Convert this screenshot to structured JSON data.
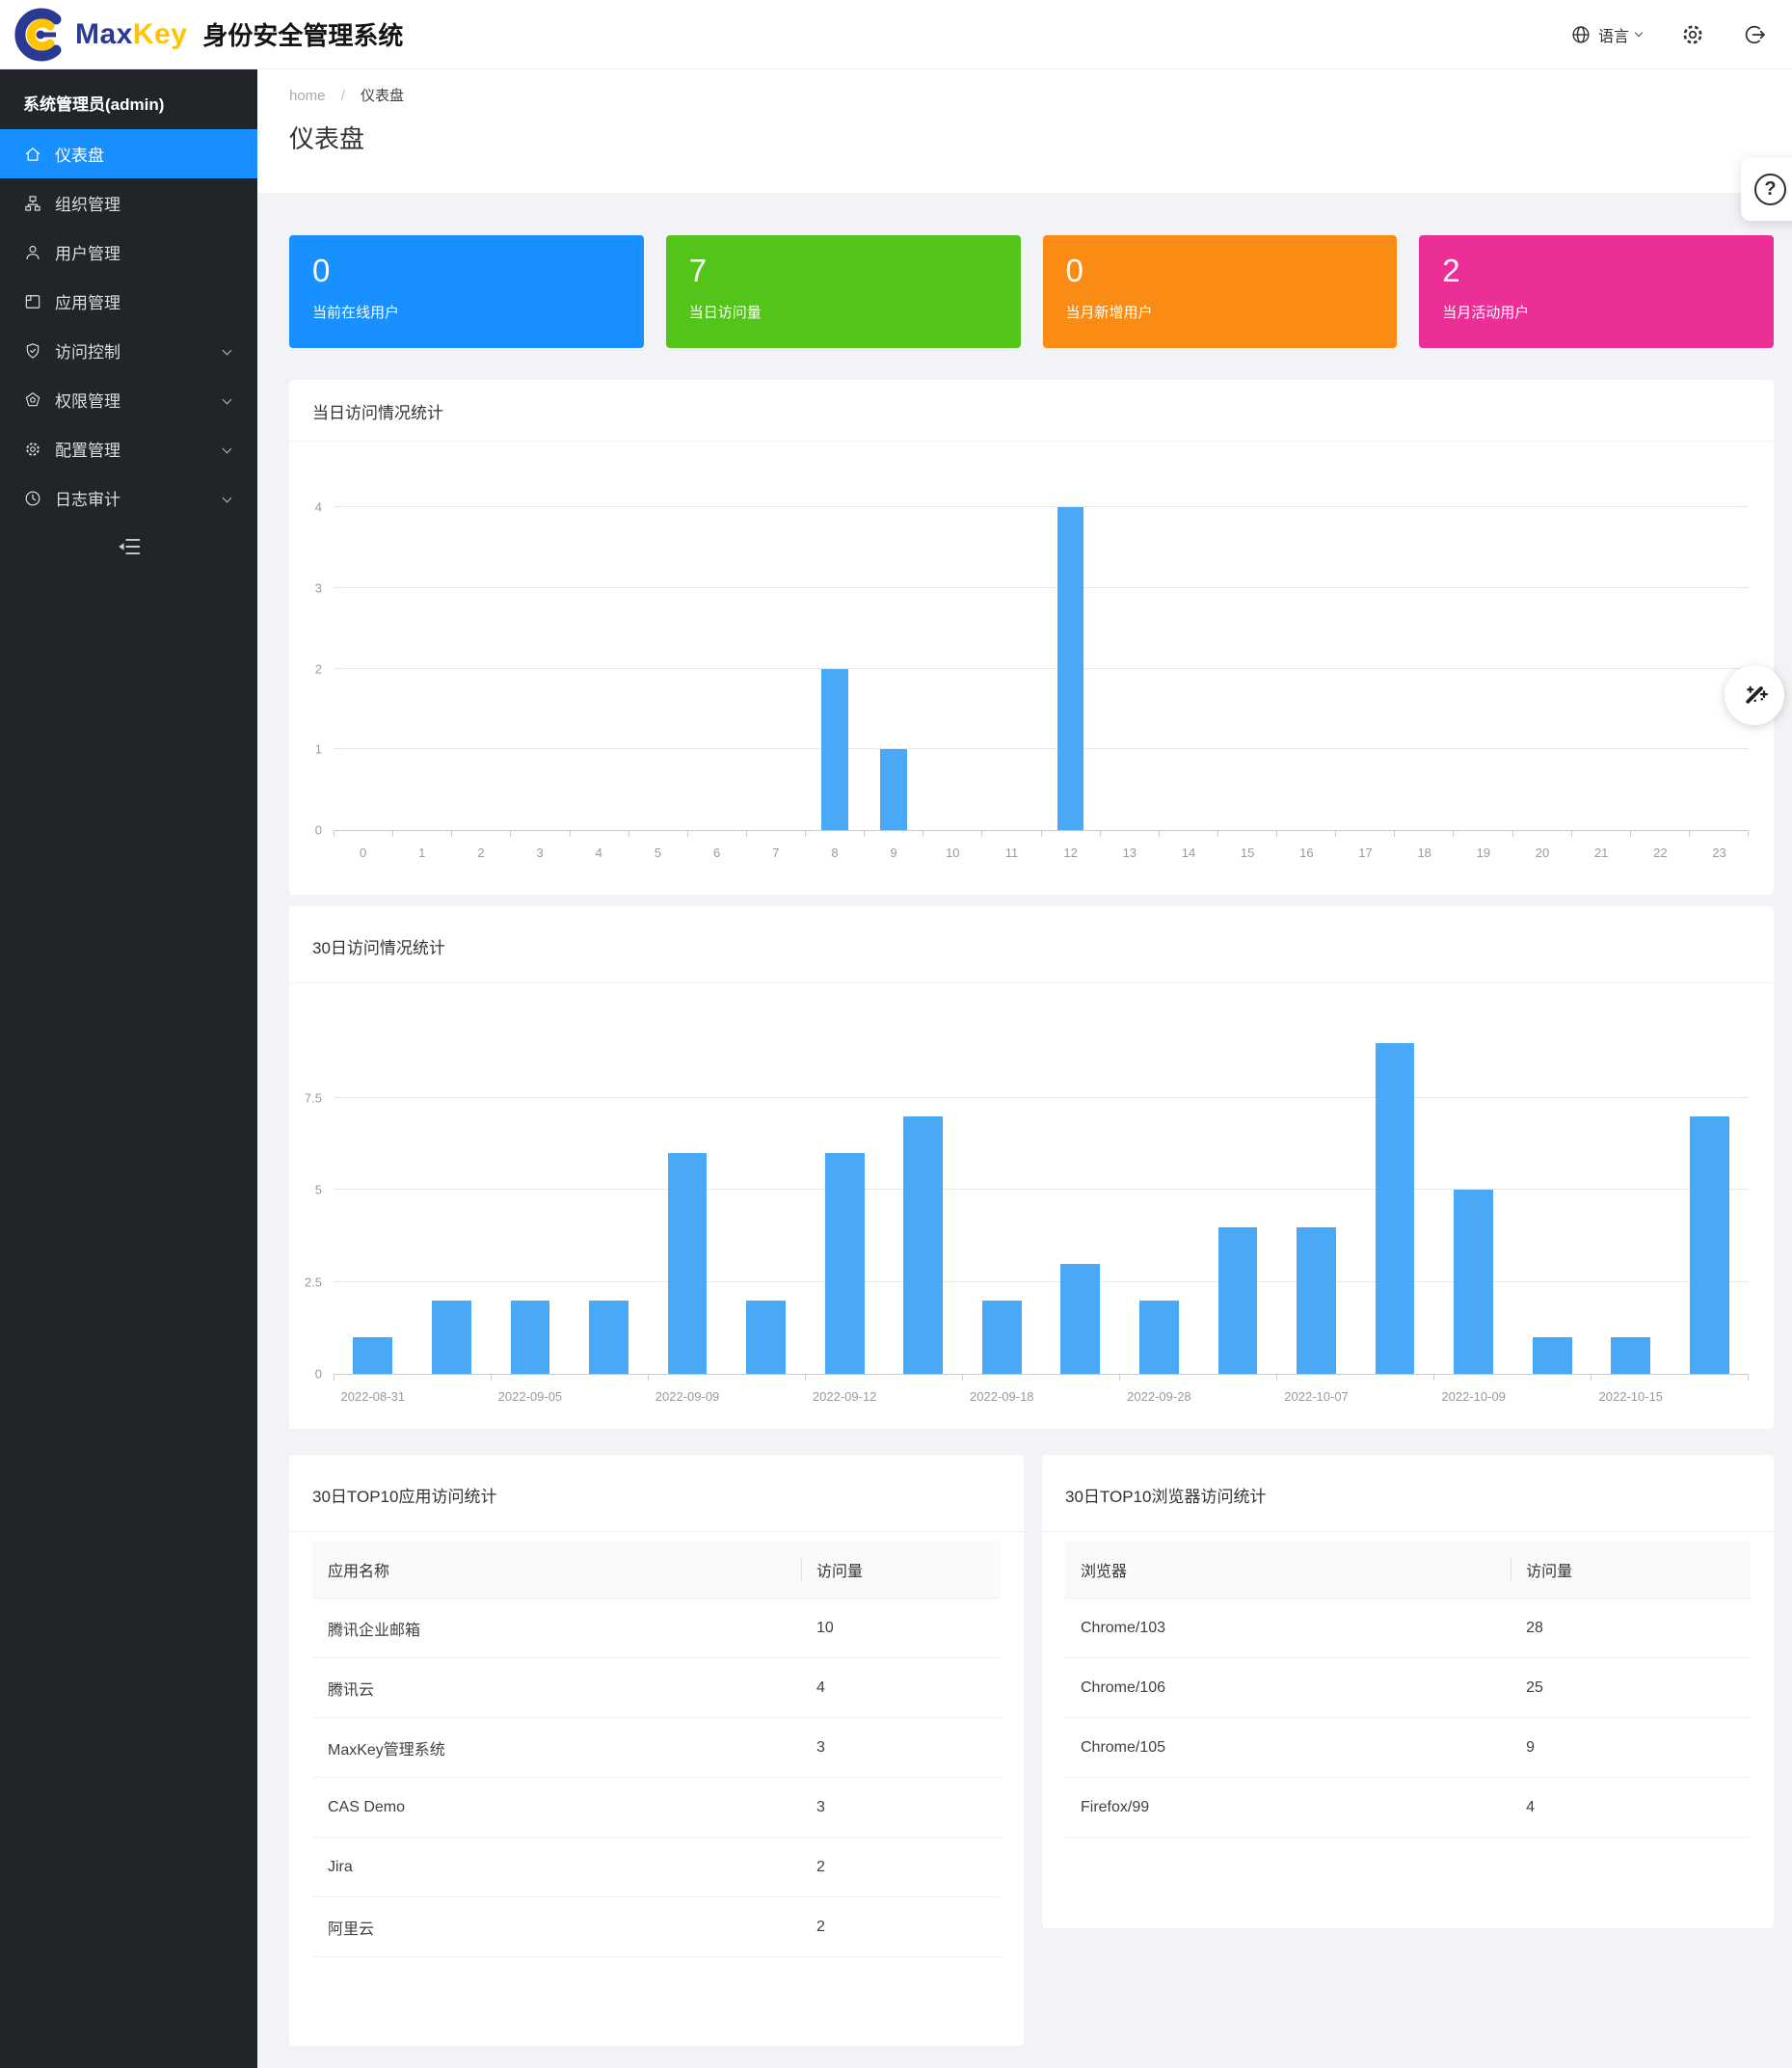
{
  "header": {
    "brand_max": "Max",
    "brand_key": "Key",
    "brand_title": "身份安全管理系统",
    "language_label": "语言"
  },
  "breadcrumb": {
    "home": "home",
    "separator": "/",
    "current": "仪表盘"
  },
  "page": {
    "title": "仪表盘"
  },
  "sidebar": {
    "user": "系统管理员(admin)",
    "items": [
      {
        "label": "仪表盘",
        "icon": "home-icon",
        "active": true,
        "expandable": false
      },
      {
        "label": "组织管理",
        "icon": "org-icon",
        "active": false,
        "expandable": false
      },
      {
        "label": "用户管理",
        "icon": "user-icon",
        "active": false,
        "expandable": false
      },
      {
        "label": "应用管理",
        "icon": "apps-icon",
        "active": false,
        "expandable": false
      },
      {
        "label": "访问控制",
        "icon": "shield-check-icon",
        "active": false,
        "expandable": true
      },
      {
        "label": "权限管理",
        "icon": "certificate-icon",
        "active": false,
        "expandable": true
      },
      {
        "label": "配置管理",
        "icon": "gear-icon",
        "active": false,
        "expandable": true
      },
      {
        "label": "日志审计",
        "icon": "clock-icon",
        "active": false,
        "expandable": true
      }
    ]
  },
  "stats": [
    {
      "value": "0",
      "label": "当前在线用户",
      "color": "#1890ff"
    },
    {
      "value": "7",
      "label": "当日访问量",
      "color": "#52c41a"
    },
    {
      "value": "0",
      "label": "当月新增用户",
      "color": "#fa8c16"
    },
    {
      "value": "2",
      "label": "当月活动用户",
      "color": "#eb2f96"
    }
  ],
  "chart_data": [
    {
      "type": "bar",
      "title": "当日访问情况统计",
      "categories": [
        "0",
        "1",
        "2",
        "3",
        "4",
        "5",
        "6",
        "7",
        "8",
        "9",
        "10",
        "11",
        "12",
        "13",
        "14",
        "15",
        "16",
        "17",
        "18",
        "19",
        "20",
        "21",
        "22",
        "23"
      ],
      "values": [
        0,
        0,
        0,
        0,
        0,
        0,
        0,
        0,
        2,
        1,
        0,
        0,
        4,
        0,
        0,
        0,
        0,
        0,
        0,
        0,
        0,
        0,
        0,
        0
      ],
      "xlabel": "",
      "ylabel": "",
      "ylim": [
        0,
        4
      ],
      "yticks": [
        0,
        1,
        2,
        3,
        4
      ],
      "tick_step": 1,
      "grid": true,
      "legend": "none",
      "bar_color": "#49a8f7"
    },
    {
      "type": "bar",
      "title": "30日访问情况统计",
      "categories": [
        "2022-08-31",
        "",
        "2022-09-05",
        "",
        "2022-09-09",
        "",
        "2022-09-12",
        "",
        "2022-09-18",
        "",
        "2022-09-28",
        "",
        "2022-10-07",
        "",
        "2022-10-09",
        "",
        "2022-10-15",
        ""
      ],
      "values": [
        1,
        2,
        2,
        2,
        6,
        2,
        6,
        7,
        2,
        3,
        2,
        4,
        4,
        9,
        5,
        1,
        1,
        7
      ],
      "xlabel": "",
      "ylabel": "",
      "ylim": [
        0,
        9.5
      ],
      "yticks": [
        0,
        2.5,
        5,
        7.5
      ],
      "tick_step": 2,
      "grid": true,
      "legend": "none",
      "bar_color": "#49a8f7"
    }
  ],
  "tables": {
    "apps": {
      "title": "30日TOP10应用访问统计",
      "columns": [
        "应用名称",
        "访问量"
      ],
      "rows": [
        [
          "腾讯企业邮箱",
          "10"
        ],
        [
          "腾讯云",
          "4"
        ],
        [
          "MaxKey管理系统",
          "3"
        ],
        [
          "CAS Demo",
          "3"
        ],
        [
          "Jira",
          "2"
        ],
        [
          "阿里云",
          "2"
        ]
      ]
    },
    "browsers": {
      "title": "30日TOP10浏览器访问统计",
      "columns": [
        "浏览器",
        "访问量"
      ],
      "rows": [
        [
          "Chrome/103",
          "28"
        ],
        [
          "Chrome/106",
          "25"
        ],
        [
          "Chrome/105",
          "9"
        ],
        [
          "Firefox/99",
          "4"
        ]
      ]
    }
  },
  "icons": {
    "help_glyph": "?",
    "language": "globe",
    "settings": "gear",
    "logout": "exit-arrow",
    "collapse": "menu-fold",
    "theme": "magic-wand"
  },
  "colors": {
    "sidebar_bg": "#212529",
    "active_item": "#1890ff",
    "bar": "#49a8f7",
    "content_bg": "#f2f3f7"
  }
}
